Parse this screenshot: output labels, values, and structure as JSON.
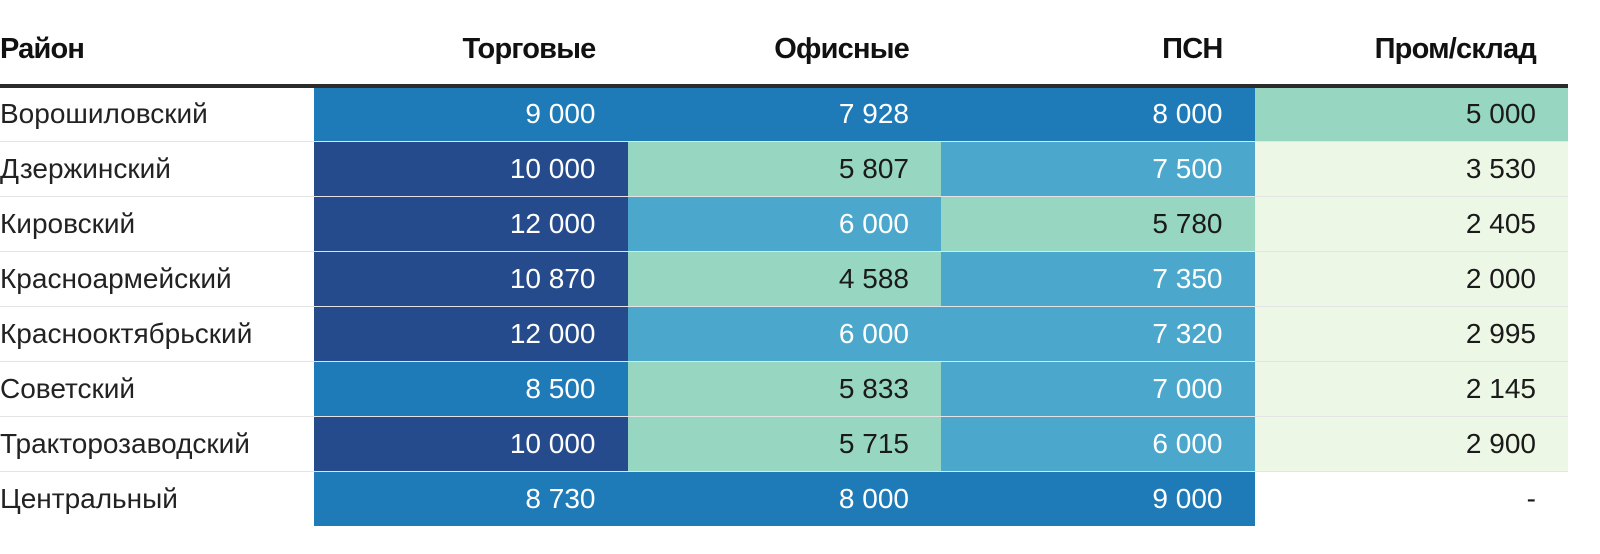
{
  "chart_data": {
    "type": "table",
    "columns": [
      "Район",
      "Торговые",
      "Офисные",
      "ПСН",
      "Пром/склад"
    ],
    "rows": [
      {
        "district": "Ворошиловский",
        "values": [
          "9 000",
          "7 928",
          "8 000",
          "5 000"
        ],
        "nums": [
          9000,
          7928,
          8000,
          5000
        ]
      },
      {
        "district": "Дзержинский",
        "values": [
          "10 000",
          "5 807",
          "7 500",
          "3 530"
        ],
        "nums": [
          10000,
          5807,
          7500,
          3530
        ]
      },
      {
        "district": "Кировский",
        "values": [
          "12 000",
          "6 000",
          "5 780",
          "2 405"
        ],
        "nums": [
          12000,
          6000,
          5780,
          2405
        ]
      },
      {
        "district": "Красноармейский",
        "values": [
          "10 870",
          "4 588",
          "7 350",
          "2 000"
        ],
        "nums": [
          10870,
          4588,
          7350,
          2000
        ]
      },
      {
        "district": "Краснооктябрьский",
        "values": [
          "12 000",
          "6 000",
          "7 320",
          "2 995"
        ],
        "nums": [
          12000,
          6000,
          7320,
          2995
        ]
      },
      {
        "district": "Советский",
        "values": [
          "8 500",
          "5 833",
          "7 000",
          "2 145"
        ],
        "nums": [
          8500,
          5833,
          7000,
          2145
        ]
      },
      {
        "district": "Тракторозаводский",
        "values": [
          "10 000",
          "5 715",
          "6 000",
          "2 900"
        ],
        "nums": [
          10000,
          5715,
          6000,
          2900
        ]
      },
      {
        "district": "Центральный",
        "values": [
          "8 730",
          "8 000",
          "9 000",
          "-"
        ],
        "nums": [
          8730,
          8000,
          9000,
          null
        ]
      }
    ],
    "color_scale": [
      {
        "min": 10000,
        "bg": "#254b8c",
        "fg": "#ffffff"
      },
      {
        "min": 7900,
        "bg": "#1f7bb8",
        "fg": "#ffffff"
      },
      {
        "min": 5950,
        "bg": "#4ba8cc",
        "fg": "#ffffff"
      },
      {
        "min": 4000,
        "bg": "#97d6c0",
        "fg": "#1a1a1a"
      },
      {
        "min": 1000,
        "bg": "#edf7e5",
        "fg": "#1a1a1a"
      }
    ],
    "empty_style": {
      "bg": "#ffffff",
      "fg": "#1a1a1a"
    }
  }
}
